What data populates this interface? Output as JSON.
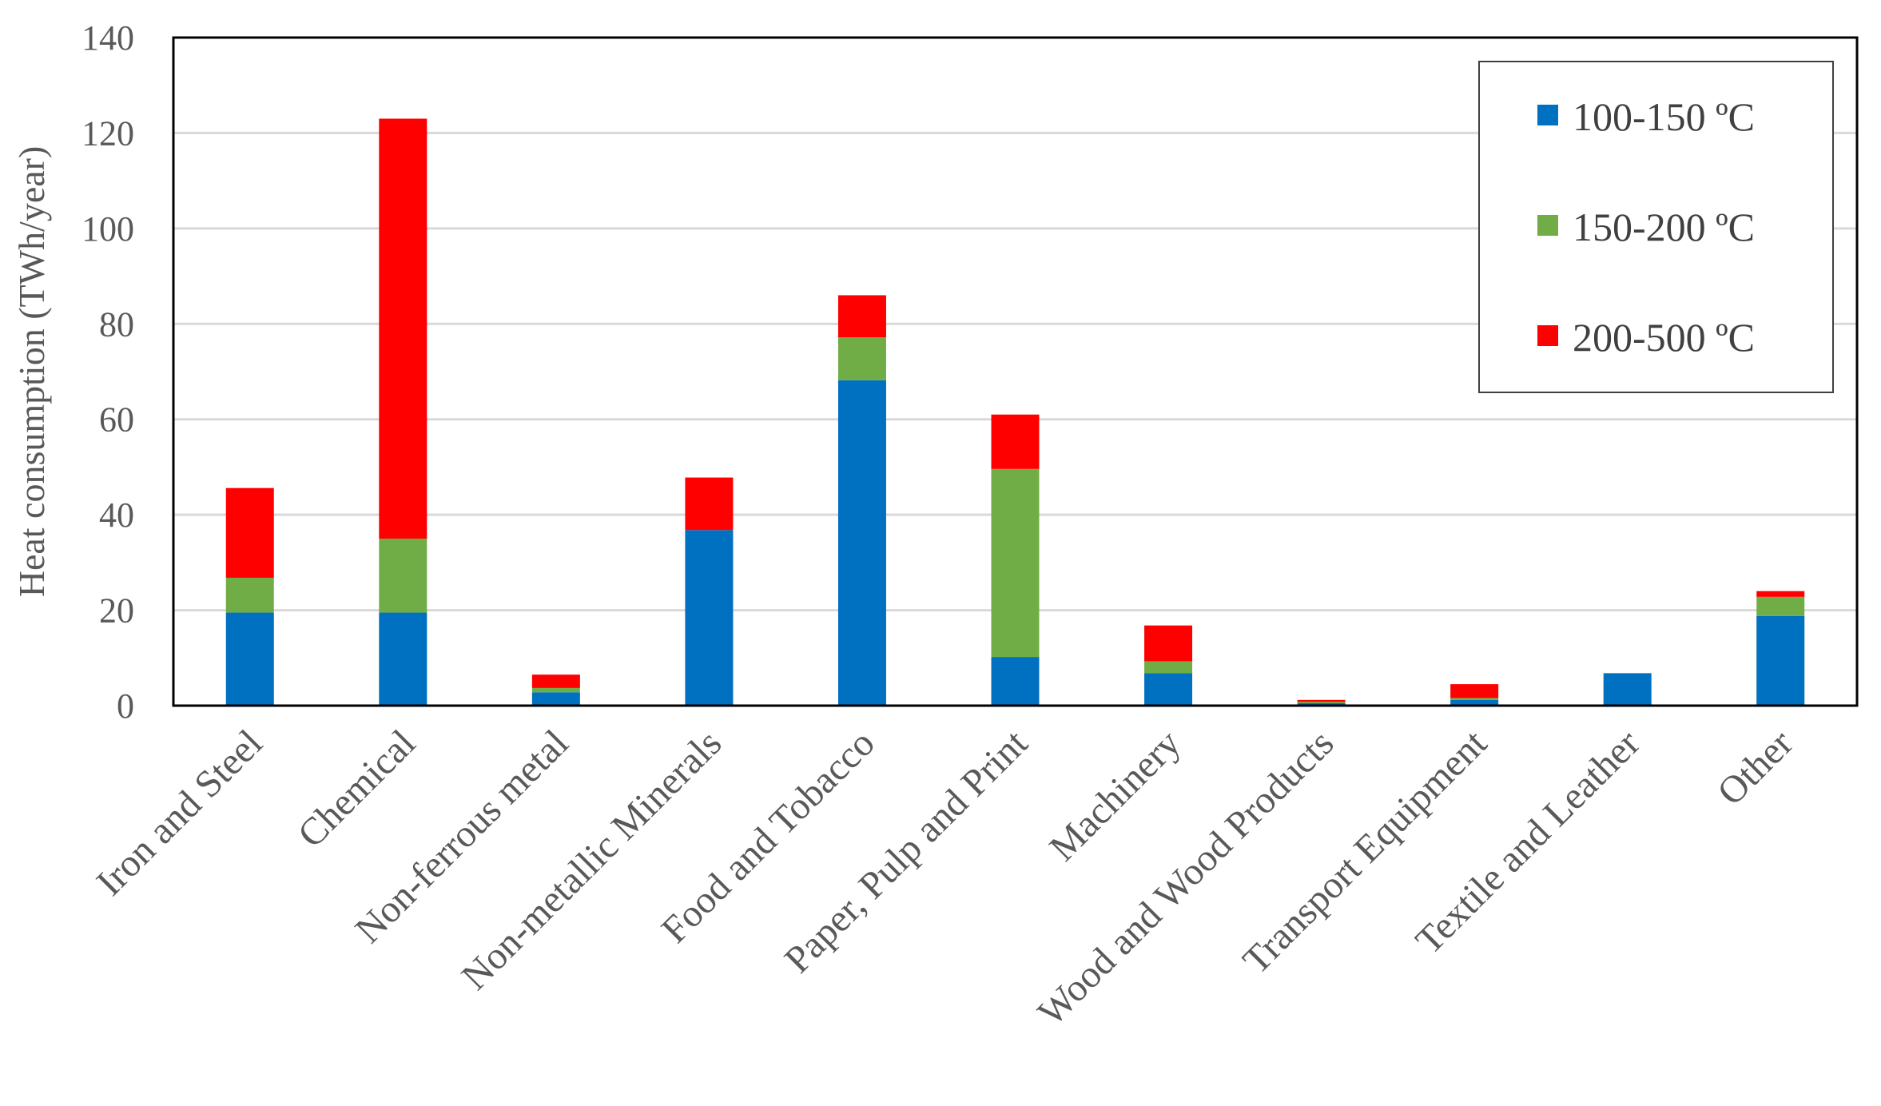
{
  "chart_data": {
    "type": "bar",
    "stacked": true,
    "title": "",
    "xlabel": "",
    "ylabel": "Heat consumption (TWh/year)",
    "ylim": [
      0,
      140
    ],
    "yticks": [
      0,
      20,
      40,
      60,
      80,
      100,
      120,
      140
    ],
    "yticks_labels": [
      "0",
      "20",
      "40",
      "60",
      "80",
      "100",
      "120",
      "140"
    ],
    "grid": "horizontal",
    "legend_position": "top-right",
    "categories": [
      "Iron and Steel",
      "Chemical",
      "Non-ferrous metal",
      "Non-metallic Minerals",
      "Food and Tobacco",
      "Paper, Pulp and Print",
      "Machinery",
      "Wood and Wood Products",
      "Transport Equipment",
      "Textile and Leather",
      "Other"
    ],
    "series": [
      {
        "name": "100-150 ºC",
        "color": "#0070C0",
        "values": [
          19.5,
          19.5,
          2.8,
          36.8,
          68.2,
          10.2,
          6.8,
          0.5,
          1.2,
          6.8,
          18.8
        ]
      },
      {
        "name": "150-200 ºC",
        "color": "#70AD47",
        "values": [
          7.3,
          15.5,
          0.9,
          0,
          9.0,
          39.4,
          2.5,
          0.3,
          0.4,
          0,
          4.0
        ]
      },
      {
        "name": "200-500 ºC",
        "color": "#FF0000",
        "values": [
          18.8,
          88.0,
          2.8,
          11.0,
          8.8,
          11.4,
          7.5,
          0.4,
          2.9,
          0,
          1.2
        ]
      }
    ]
  }
}
